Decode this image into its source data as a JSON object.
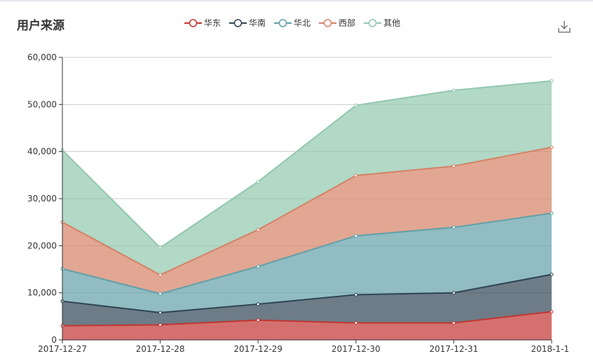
{
  "title": "用户来源",
  "toolbar": {
    "download_icon": "download-icon"
  },
  "chart_data": {
    "type": "area",
    "stacked": true,
    "title": "用户来源",
    "categories": [
      "2017-12-27",
      "2017-12-28",
      "2017-12-29",
      "2017-12-30",
      "2017-12-31",
      "2018-1-1"
    ],
    "ylim": [
      0,
      60000
    ],
    "yticks": [
      "0",
      "10,000",
      "20,000",
      "30,000",
      "40,000",
      "50,000",
      "60,000"
    ],
    "grid": true,
    "legend_position": "top-center",
    "series": [
      {
        "name": "华东",
        "color": "#c23531",
        "values": [
          3000,
          3200,
          4200,
          3600,
          3600,
          6000
        ]
      },
      {
        "name": "华南",
        "color": "#2f4554",
        "values": [
          5200,
          2600,
          3400,
          6000,
          6400,
          7900
        ]
      },
      {
        "name": "华北",
        "color": "#61a0a8",
        "values": [
          6900,
          4000,
          8000,
          12500,
          13900,
          13000
        ]
      },
      {
        "name": "西部",
        "color": "#d48265",
        "values": [
          9900,
          4000,
          7800,
          12800,
          13000,
          14000
        ]
      },
      {
        "name": "其他",
        "color": "#91c7ae",
        "values": [
          15300,
          5800,
          10200,
          14900,
          16100,
          14100
        ]
      }
    ]
  }
}
